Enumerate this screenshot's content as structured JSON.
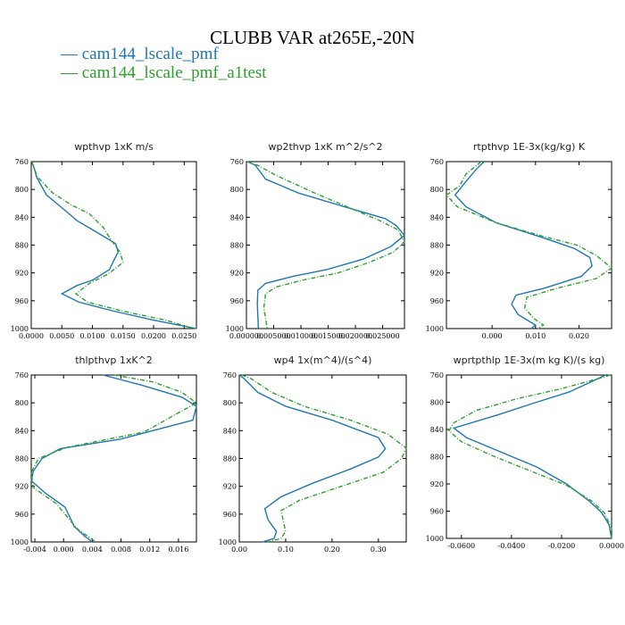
{
  "title": "CLUBB VAR at265E,-20N",
  "legend": [
    {
      "label": "— cam144_lscale_pmf",
      "color": "#1f77b4"
    },
    {
      "label": "— cam144_lscale_pmf_a1test",
      "color": "#2ca02c"
    }
  ],
  "chart_data": [
    {
      "type": "line",
      "title": "wpthvp  1xK m/s",
      "xlim": [
        0,
        0.027
      ],
      "ylim": [
        760,
        1000
      ],
      "y_inverted": true,
      "xticks": [
        0.0,
        0.005,
        0.01,
        0.015,
        0.02,
        0.025
      ],
      "xticklabels": [
        "0.0000",
        "0.0050",
        "0.0100",
        "0.0150",
        "0.0200",
        "0.0250"
      ],
      "yticks": [
        760,
        800,
        840,
        880,
        920,
        960,
        1000
      ],
      "yticklabels": [
        "760",
        "800",
        "840",
        "880",
        "920",
        "960",
        "1000"
      ],
      "series": [
        {
          "name": "cam144_lscale_pmf",
          "color": "#1f77b4",
          "dash": false,
          "points": [
            [
              0.0001,
              753
            ],
            [
              0.0005,
              770
            ],
            [
              0.0009,
              783
            ],
            [
              0.0025,
              808
            ],
            [
              0.0055,
              830
            ],
            [
              0.0075,
              845
            ],
            [
              0.0108,
              862
            ],
            [
              0.0138,
              878
            ],
            [
              0.0142,
              890
            ],
            [
              0.0135,
              902
            ],
            [
              0.0128,
              915
            ],
            [
              0.0101,
              930
            ],
            [
              0.0075,
              938
            ],
            [
              0.005,
              950
            ],
            [
              0.0078,
              962
            ],
            [
              0.0135,
              975
            ],
            [
              0.02,
              988
            ],
            [
              0.027,
              1000
            ]
          ]
        },
        {
          "name": "cam144_lscale_pmf_a1test",
          "color": "#2ca02c",
          "dash": true,
          "points": [
            [
              0.0001,
              753
            ],
            [
              0.0005,
              770
            ],
            [
              0.001,
              782
            ],
            [
              0.0035,
              805
            ],
            [
              0.0065,
              822
            ],
            [
              0.0095,
              835
            ],
            [
              0.0118,
              855
            ],
            [
              0.013,
              872
            ],
            [
              0.0145,
              890
            ],
            [
              0.015,
              905
            ],
            [
              0.0125,
              922
            ],
            [
              0.0095,
              935
            ],
            [
              0.0073,
              950
            ],
            [
              0.0092,
              962
            ],
            [
              0.015,
              975
            ],
            [
              0.022,
              988
            ],
            [
              0.0265,
              1000
            ]
          ]
        }
      ]
    },
    {
      "type": "line",
      "title": "wp2thvp  1xK m^2/s^2",
      "xlim": [
        0,
        0.029
      ],
      "ylim": [
        760,
        1000
      ],
      "y_inverted": true,
      "xticks": [
        0.0,
        0.005,
        0.01,
        0.015,
        0.02,
        0.025
      ],
      "xticklabels": [
        "0.000000",
        "0.005000",
        "0.010000",
        "0.015000",
        "0.020000",
        "0.025000"
      ],
      "yticks": [
        760,
        800,
        840,
        880,
        920,
        960,
        1000
      ],
      "yticklabels": [
        "760",
        "800",
        "840",
        "880",
        "920",
        "960",
        "1000"
      ],
      "series": [
        {
          "name": "cam144_lscale_pmf",
          "color": "#1f77b4",
          "dash": false,
          "points": [
            [
              0.0001,
              753
            ],
            [
              0.0016,
              765
            ],
            [
              0.0035,
              785
            ],
            [
              0.0095,
              805
            ],
            [
              0.018,
              825
            ],
            [
              0.0255,
              842
            ],
            [
              0.0275,
              852
            ],
            [
              0.029,
              866
            ],
            [
              0.0265,
              882
            ],
            [
              0.0215,
              900
            ],
            [
              0.0148,
              915
            ],
            [
              0.0085,
              925
            ],
            [
              0.0035,
              935
            ],
            [
              0.0021,
              945
            ],
            [
              0.002,
              965
            ],
            [
              0.0022,
              1000
            ]
          ]
        },
        {
          "name": "cam144_lscale_pmf_a1test",
          "color": "#2ca02c",
          "dash": true,
          "points": [
            [
              0.0001,
              753
            ],
            [
              0.002,
              765
            ],
            [
              0.0055,
              780
            ],
            [
              0.0125,
              805
            ],
            [
              0.0185,
              825
            ],
            [
              0.0245,
              845
            ],
            [
              0.0278,
              858
            ],
            [
              0.0295,
              875
            ],
            [
              0.027,
              890
            ],
            [
              0.0225,
              905
            ],
            [
              0.0168,
              920
            ],
            [
              0.0105,
              930
            ],
            [
              0.0055,
              940
            ],
            [
              0.0035,
              950
            ],
            [
              0.0032,
              970
            ],
            [
              0.0038,
              1000
            ]
          ]
        }
      ]
    },
    {
      "type": "line",
      "title": "rtpthvp  1E-3x(kg/kg) K",
      "xlim": [
        -0.0105,
        0.0275
      ],
      "ylim": [
        760,
        1000
      ],
      "y_inverted": true,
      "xticks": [
        0.0,
        0.01,
        0.02
      ],
      "xticklabels": [
        "0.000",
        "0.010",
        "0.020"
      ],
      "yticks": [
        760,
        800,
        840,
        880,
        920,
        960,
        1000
      ],
      "yticklabels": [
        "760",
        "800",
        "840",
        "880",
        "920",
        "960",
        "1000"
      ],
      "series": [
        {
          "name": "cam144_lscale_pmf",
          "color": "#1f77b4",
          "dash": false,
          "points": [
            [
              -0.0018,
              755
            ],
            [
              -0.0035,
              770
            ],
            [
              -0.0062,
              790
            ],
            [
              -0.0085,
              808
            ],
            [
              -0.006,
              825
            ],
            [
              0.001,
              848
            ],
            [
              0.012,
              870
            ],
            [
              0.019,
              885
            ],
            [
              0.0225,
              898
            ],
            [
              0.023,
              910
            ],
            [
              0.0205,
              925
            ],
            [
              0.012,
              942
            ],
            [
              0.0055,
              952
            ],
            [
              0.0045,
              965
            ],
            [
              0.006,
              980
            ],
            [
              0.01,
              995
            ],
            [
              0.009,
              1000
            ]
          ]
        },
        {
          "name": "cam144_lscale_pmf_a1test",
          "color": "#2ca02c",
          "dash": true,
          "points": [
            [
              -0.0025,
              758
            ],
            [
              -0.006,
              778
            ],
            [
              -0.0075,
              795
            ],
            [
              -0.0105,
              808
            ],
            [
              -0.008,
              825
            ],
            [
              0.001,
              848
            ],
            [
              0.012,
              868
            ],
            [
              0.0195,
              880
            ],
            [
              0.024,
              895
            ],
            [
              0.0275,
              913
            ],
            [
              0.024,
              928
            ],
            [
              0.015,
              942
            ],
            [
              0.008,
              955
            ],
            [
              0.0075,
              970
            ],
            [
              0.0095,
              985
            ],
            [
              0.0118,
              995
            ],
            [
              0.0105,
              1000
            ]
          ]
        }
      ]
    },
    {
      "type": "line",
      "title": "thlpthvp  1xK^2",
      "xlim": [
        -0.0045,
        0.0185
      ],
      "ylim": [
        760,
        1000
      ],
      "y_inverted": true,
      "xticks": [
        -0.004,
        0.0,
        0.004,
        0.008,
        0.012,
        0.016
      ],
      "xticklabels": [
        "-0.004",
        "0.000",
        "0.004",
        "0.008",
        "0.012",
        "0.016"
      ],
      "yticks": [
        760,
        800,
        840,
        880,
        920,
        960,
        1000
      ],
      "yticklabels": [
        "760",
        "800",
        "840",
        "880",
        "920",
        "960",
        "1000"
      ],
      "series": [
        {
          "name": "cam144_lscale_pmf",
          "color": "#1f77b4",
          "dash": false,
          "points": [
            [
              0.0055,
              752
            ],
            [
              0.011,
              775
            ],
            [
              0.0165,
              792
            ],
            [
              0.0185,
              805
            ],
            [
              0.018,
              825
            ],
            [
              0.008,
              852
            ],
            [
              -0.0005,
              866
            ],
            [
              -0.003,
              880
            ],
            [
              -0.0042,
              898
            ],
            [
              -0.0045,
              912
            ],
            [
              -0.0025,
              930
            ],
            [
              0.0002,
              950
            ],
            [
              0.0015,
              978
            ],
            [
              0.003,
              992
            ],
            [
              0.004,
              1000
            ]
          ]
        },
        {
          "name": "cam144_lscale_pmf_a1test",
          "color": "#2ca02c",
          "dash": true,
          "points": [
            [
              0.007,
              752
            ],
            [
              0.0125,
              770
            ],
            [
              0.0165,
              785
            ],
            [
              0.0185,
              800
            ],
            [
              0.0112,
              842
            ],
            [
              0.0005,
              864
            ],
            [
              -0.0035,
              880
            ],
            [
              -0.0045,
              900
            ],
            [
              -0.0042,
              922
            ],
            [
              -0.001,
              945
            ],
            [
              0.001,
              970
            ],
            [
              0.002,
              982
            ],
            [
              0.0045,
              1000
            ]
          ]
        }
      ]
    },
    {
      "type": "line",
      "title": "wp4  1x(m^4)/(s^4)",
      "xlim": [
        0,
        0.36
      ],
      "ylim": [
        760,
        1000
      ],
      "y_inverted": true,
      "xticks": [
        0.0,
        0.1,
        0.2,
        0.3
      ],
      "xticklabels": [
        "0.00",
        "0.10",
        "0.20",
        "0.30"
      ],
      "yticks": [
        760,
        800,
        840,
        880,
        920,
        960,
        1000
      ],
      "yticklabels": [
        "760",
        "800",
        "840",
        "880",
        "920",
        "960",
        "1000"
      ],
      "series": [
        {
          "name": "cam144_lscale_pmf",
          "color": "#1f77b4",
          "dash": false,
          "points": [
            [
              0.0,
              752
            ],
            [
              0.01,
              765
            ],
            [
              0.04,
              785
            ],
            [
              0.1,
              805
            ],
            [
              0.2,
              825
            ],
            [
              0.3,
              850
            ],
            [
              0.315,
              866
            ],
            [
              0.3,
              878
            ],
            [
              0.24,
              895
            ],
            [
              0.16,
              915
            ],
            [
              0.09,
              935
            ],
            [
              0.055,
              952
            ],
            [
              0.062,
              968
            ],
            [
              0.08,
              985
            ],
            [
              0.075,
              995
            ],
            [
              0.05,
              1000
            ]
          ]
        },
        {
          "name": "cam144_lscale_pmf_a1test",
          "color": "#2ca02c",
          "dash": true,
          "points": [
            [
              0.005,
              752
            ],
            [
              0.025,
              765
            ],
            [
              0.07,
              785
            ],
            [
              0.14,
              805
            ],
            [
              0.24,
              825
            ],
            [
              0.32,
              845
            ],
            [
              0.36,
              865
            ],
            [
              0.35,
              880
            ],
            [
              0.31,
              900
            ],
            [
              0.22,
              920
            ],
            [
              0.13,
              940
            ],
            [
              0.09,
              955
            ],
            [
              0.095,
              970
            ],
            [
              0.1,
              985
            ],
            [
              0.09,
              995
            ],
            [
              0.06,
              1000
            ]
          ]
        }
      ]
    },
    {
      "type": "line",
      "title": "wprtpthlp  1E-3x(m kg K)/(s kg)",
      "xlim": [
        -0.066,
        0.0
      ],
      "ylim": [
        760,
        1000
      ],
      "y_inverted": true,
      "xticks": [
        -0.06,
        -0.04,
        -0.02,
        0.0
      ],
      "xticklabels": [
        "-0.0600",
        "-0.0400",
        "-0.0200",
        "0.0000"
      ],
      "yticks": [
        760,
        800,
        840,
        880,
        920,
        960,
        1000
      ],
      "yticklabels": [
        "760",
        "800",
        "840",
        "880",
        "920",
        "960",
        "1000"
      ],
      "series": [
        {
          "name": "cam144_lscale_pmf",
          "color": "#1f77b4",
          "dash": false,
          "points": [
            [
              -0.0025,
              752
            ],
            [
              -0.007,
              768
            ],
            [
              -0.017,
              785
            ],
            [
              -0.03,
              800
            ],
            [
              -0.045,
              818
            ],
            [
              -0.063,
              838
            ],
            [
              -0.058,
              852
            ],
            [
              -0.045,
              872
            ],
            [
              -0.03,
              895
            ],
            [
              -0.018,
              920
            ],
            [
              -0.009,
              945
            ],
            [
              -0.004,
              962
            ],
            [
              -0.001,
              980
            ],
            [
              0.0,
              1000
            ]
          ]
        },
        {
          "name": "cam144_lscale_pmf_a1test",
          "color": "#2ca02c",
          "dash": true,
          "points": [
            [
              -0.0005,
              752
            ],
            [
              -0.005,
              765
            ],
            [
              -0.02,
              780
            ],
            [
              -0.038,
              795
            ],
            [
              -0.054,
              812
            ],
            [
              -0.063,
              830
            ],
            [
              -0.065,
              842
            ],
            [
              -0.06,
              858
            ],
            [
              -0.048,
              878
            ],
            [
              -0.033,
              900
            ],
            [
              -0.018,
              922
            ],
            [
              -0.008,
              945
            ],
            [
              -0.003,
              962
            ],
            [
              0.0,
              985
            ],
            [
              0.0,
              1000
            ]
          ]
        }
      ]
    }
  ]
}
